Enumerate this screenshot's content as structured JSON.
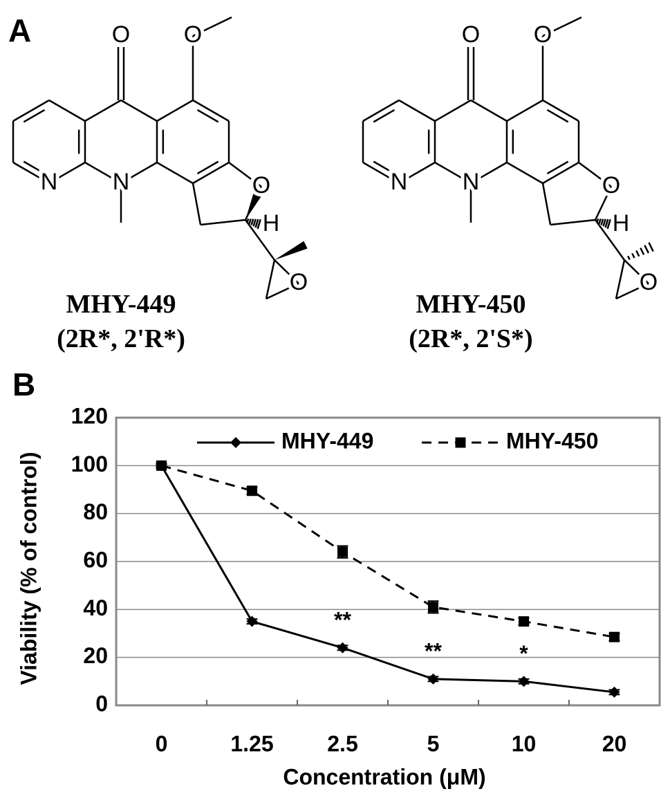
{
  "panel_a": {
    "label": "A",
    "compounds": [
      {
        "name": "MHY-449",
        "stereo": "(2R*, 2'R*)",
        "atoms": [
          "O",
          "O",
          "N",
          "N",
          "O",
          "H",
          "O"
        ]
      },
      {
        "name": "MHY-450",
        "stereo": "(2R*, 2'S*)",
        "atoms": [
          "O",
          "O",
          "N",
          "N",
          "O",
          "H",
          "O"
        ]
      }
    ]
  },
  "chart_data": {
    "type": "line",
    "panel_label": "B",
    "x_label": "Concentration (μM)",
    "y_label": "Viability (% of control)",
    "categories": [
      "0",
      "1.25",
      "2.5",
      "5",
      "10",
      "20"
    ],
    "series": [
      {
        "name": "MHY-449",
        "color": "#000000",
        "line_style": "solid",
        "marker": "diamond",
        "values": [
          100,
          35,
          24,
          11,
          10,
          5.5
        ],
        "errors": [
          0.5,
          1,
          1,
          1,
          1,
          1
        ]
      },
      {
        "name": "MHY-450",
        "color": "#000000",
        "line_style": "dashed",
        "marker": "square",
        "values": [
          100,
          89.5,
          64,
          41,
          35,
          28.5
        ],
        "errors": [
          1,
          1.5,
          2.5,
          2.5,
          1.5,
          1.5
        ]
      }
    ],
    "significance": [
      null,
      null,
      "**",
      "**",
      "*",
      null
    ],
    "ylim": [
      0,
      120
    ],
    "yticks": [
      0,
      20,
      40,
      60,
      80,
      100,
      120
    ],
    "grid": true,
    "legend": "top"
  }
}
